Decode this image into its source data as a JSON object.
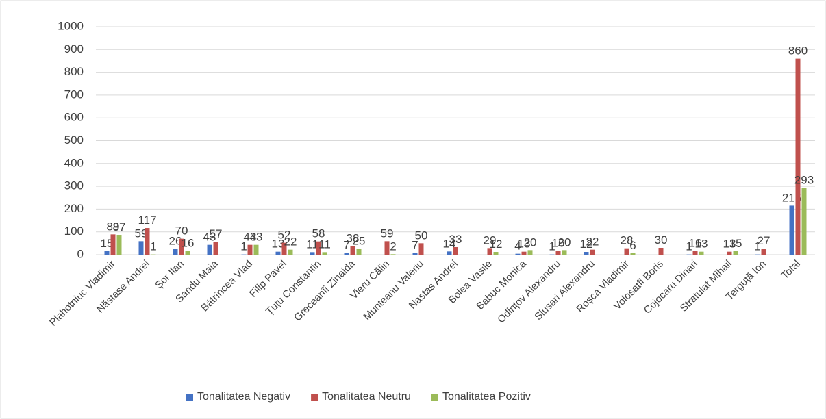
{
  "chart_data": {
    "type": "bar",
    "categories": [
      "Plahotniuc Vladimir",
      "Năstase Andrei",
      "Șor Ilan",
      "Sandu Maia",
      "Bătrîncea Vlad",
      "Filip Pavel",
      "Țuțu Constantin",
      "Greceanîi Zinaida",
      "Vieru Călin",
      "Munteanu Valeriu",
      "Nastas Andrei",
      "Bolea Vasile",
      "Babuc Monica",
      "Odințov Alexandru",
      "Slusari Alexandru",
      "Roșca  Vladimir",
      "Volosatîi Boris",
      "Cojocaru Dinari",
      "Stratulat Mihail",
      "Terguță Ion",
      "Total"
    ],
    "series": [
      {
        "name": "Tonalitatea Negativ",
        "color": "#4472c4",
        "values": [
          15,
          59,
          26,
          43,
          1,
          13,
          11,
          7,
          null,
          7,
          14,
          null,
          4,
          1,
          12,
          null,
          null,
          1,
          null,
          1,
          215
        ]
      },
      {
        "name": "Tonalitatea Neutru",
        "color": "#c0504d",
        "values": [
          89,
          117,
          70,
          57,
          43,
          52,
          58,
          38,
          59,
          50,
          33,
          29,
          13,
          16,
          22,
          28,
          30,
          16,
          13,
          27,
          860
        ]
      },
      {
        "name": "Tonalitatea Pozitiv",
        "color": "#9bbb59",
        "values": [
          87,
          1,
          16,
          null,
          43,
          22,
          11,
          25,
          2,
          null,
          null,
          12,
          20,
          20,
          null,
          6,
          null,
          13,
          15,
          null,
          293
        ]
      }
    ],
    "ylim": [
      0,
      1000
    ],
    "yticks": [
      0,
      100,
      200,
      300,
      400,
      500,
      600,
      700,
      800,
      900,
      1000
    ],
    "grid": true,
    "legend": "bottom"
  }
}
